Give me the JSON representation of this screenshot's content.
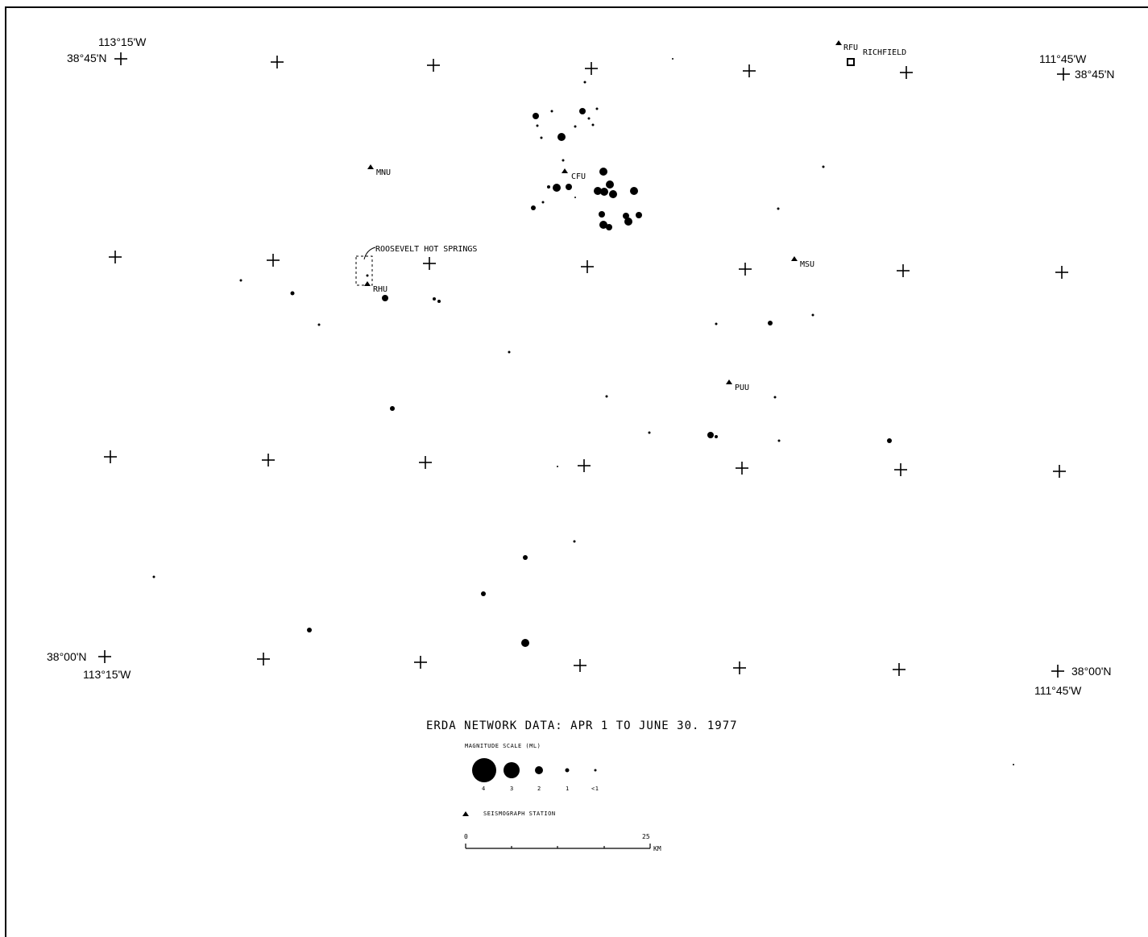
{
  "map": {
    "title": "ERDA NETWORK DATA: APR 1 TO JUNE 30. 1977",
    "corner_labels": {
      "nw_lon": "113°15'W",
      "nw_lat": "38°45'N",
      "ne_lon": "111°45'W",
      "ne_lat": "38°45'N",
      "sw_lat": "38°00'N",
      "sw_lon": "113°15'W",
      "se_lat": "38°00'N",
      "se_lon": "111°45'W"
    },
    "stations": [
      {
        "code": "MNU"
      },
      {
        "code": "CFU"
      },
      {
        "code": "RFU"
      },
      {
        "code": "RHU"
      },
      {
        "code": "MSU"
      },
      {
        "code": "PUU"
      }
    ],
    "places": {
      "richfield": "RICHFIELD",
      "roosevelt": "ROOSEVELT HOT SPRINGS"
    },
    "legend": {
      "magnitude_title": "MAGNITUDE SCALE (ML)",
      "magnitudes": [
        "4",
        "3",
        "2",
        "1",
        "<1"
      ],
      "station_label": "SEISMOGRAPH STATION",
      "scale_start": "0",
      "scale_end": "25",
      "scale_unit": "KM"
    },
    "colors": {
      "ink": "#000000",
      "paper": "#ffffff"
    }
  }
}
